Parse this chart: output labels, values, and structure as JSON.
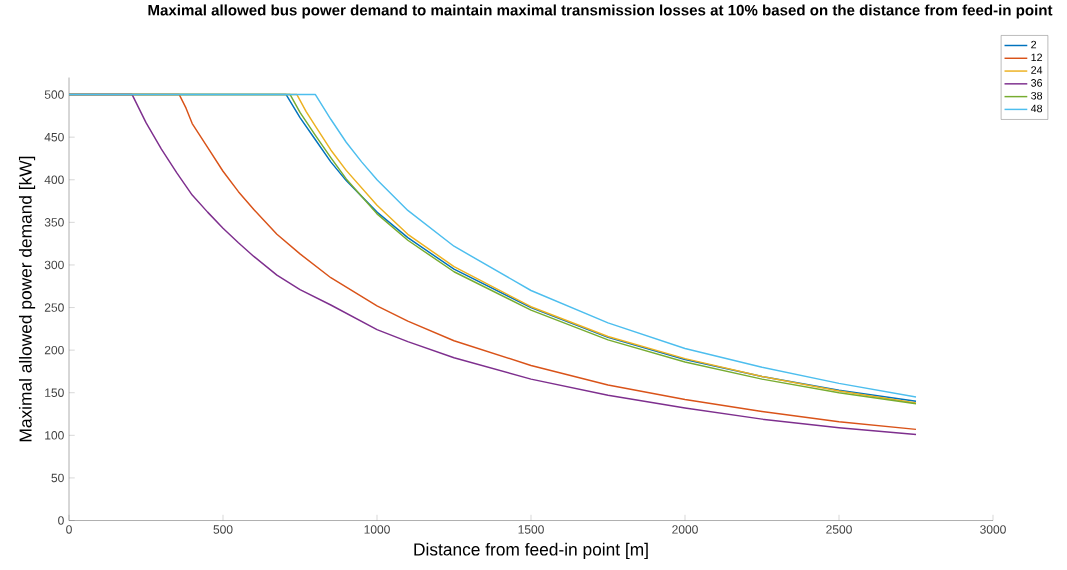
{
  "chart_data": {
    "type": "line",
    "title": "Maximal allowed bus power demand to maintain maximal transmission losses at 10% based on the distance from feed-in point",
    "xlabel": "Distance from feed-in point [m]",
    "ylabel": "Maximal allowed power demand [kW]",
    "xlim": [
      0,
      3000
    ],
    "ylim": [
      0,
      520
    ],
    "xticks": [
      0,
      500,
      1000,
      1500,
      2000,
      2500,
      3000
    ],
    "yticks": [
      0,
      50,
      100,
      150,
      200,
      250,
      300,
      350,
      400,
      450,
      500
    ],
    "grid": false,
    "legend": "top right",
    "marker": "none",
    "line_style": "solid",
    "series": [
      {
        "name": "2",
        "color": "#0072bd",
        "x": [
          0,
          705,
          750,
          800,
          850,
          900,
          1000,
          1100,
          1250,
          1500,
          1750,
          2000,
          2250,
          2500,
          2750
        ],
        "values": [
          500,
          500,
          473,
          447,
          421,
          399,
          362,
          332,
          295,
          250,
          215,
          189,
          169,
          153,
          140
        ]
      },
      {
        "name": "12",
        "color": "#d95319",
        "x": [
          0,
          358,
          380,
          400,
          450,
          500,
          550,
          600,
          675,
          750,
          850,
          1000,
          1100,
          1250,
          1500,
          1750,
          2000,
          2250,
          2500,
          2750
        ],
        "values": [
          500,
          500,
          484,
          466,
          438,
          410,
          386,
          365,
          336,
          313,
          285,
          252,
          234,
          211,
          182,
          159,
          142,
          128,
          116,
          107
        ]
      },
      {
        "name": "24",
        "color": "#edb120",
        "x": [
          0,
          740,
          770,
          800,
          850,
          900,
          1000,
          1100,
          1250,
          1500,
          1750,
          2000,
          2250,
          2500,
          2750
        ],
        "values": [
          500,
          500,
          480,
          463,
          435,
          411,
          370,
          336,
          298,
          251,
          216,
          190,
          169,
          152,
          138
        ]
      },
      {
        "name": "36",
        "color": "#7e2f8e",
        "x": [
          0,
          205,
          250,
          300,
          350,
          400,
          450,
          500,
          550,
          600,
          675,
          750,
          850,
          1000,
          1100,
          1250,
          1500,
          1750,
          2000,
          2250,
          2500,
          2750
        ],
        "values": [
          500,
          500,
          467,
          436,
          408,
          382,
          362,
          343,
          326,
          310,
          288,
          271,
          253,
          224,
          210,
          191,
          166,
          147,
          132,
          119,
          109,
          101
        ]
      },
      {
        "name": "38",
        "color": "#77ac30",
        "x": [
          0,
          718,
          750,
          800,
          850,
          900,
          1000,
          1100,
          1250,
          1500,
          1750,
          2000,
          2250,
          2500,
          2750
        ],
        "values": [
          500,
          500,
          479,
          452,
          426,
          401,
          360,
          329,
          292,
          247,
          212,
          186,
          166,
          150,
          137
        ]
      },
      {
        "name": "48",
        "color": "#4dbeee",
        "x": [
          0,
          800,
          850,
          900,
          950,
          1000,
          1100,
          1250,
          1500,
          1750,
          2000,
          2250,
          2500,
          2750
        ],
        "values": [
          500,
          500,
          471,
          444,
          421,
          400,
          364,
          322,
          270,
          232,
          202,
          180,
          161,
          145
        ]
      }
    ]
  }
}
